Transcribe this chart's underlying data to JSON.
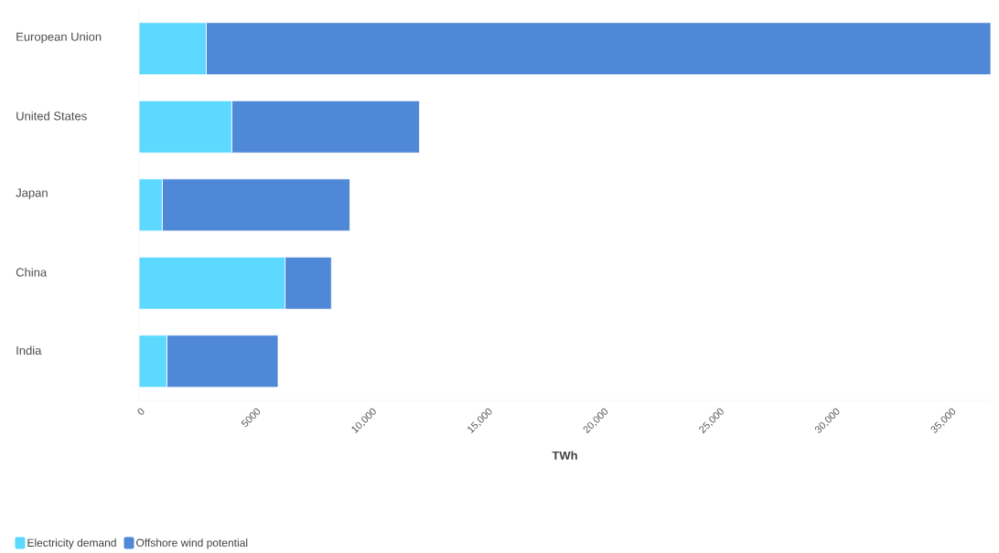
{
  "chart_data": {
    "type": "bar",
    "orientation": "horizontal",
    "stacked": true,
    "xlabel": "TWh",
    "categories": [
      "European Union",
      "United States",
      "Japan",
      "China",
      "India"
    ],
    "series": [
      {
        "name": "Electricity demand",
        "color": "#5dd8fe",
        "values": [
          2900,
          4000,
          1000,
          6300,
          1200
        ]
      },
      {
        "name": "Offshore wind potential",
        "color": "#5088d8",
        "values": [
          33850,
          8100,
          8100,
          2000,
          4800
        ]
      }
    ],
    "xlim": [
      0,
      36750
    ],
    "xticks": [
      0,
      5000,
      {
        "value": 10000,
        "label": "10,000"
      },
      {
        "value": 15000,
        "label": "15,000"
      },
      {
        "value": 20000,
        "label": "20,000"
      },
      {
        "value": 25000,
        "label": "25,000"
      },
      {
        "value": 30000,
        "label": "30,000"
      },
      {
        "value": 35000,
        "label": "35,000"
      }
    ],
    "legend": "bottom left"
  }
}
